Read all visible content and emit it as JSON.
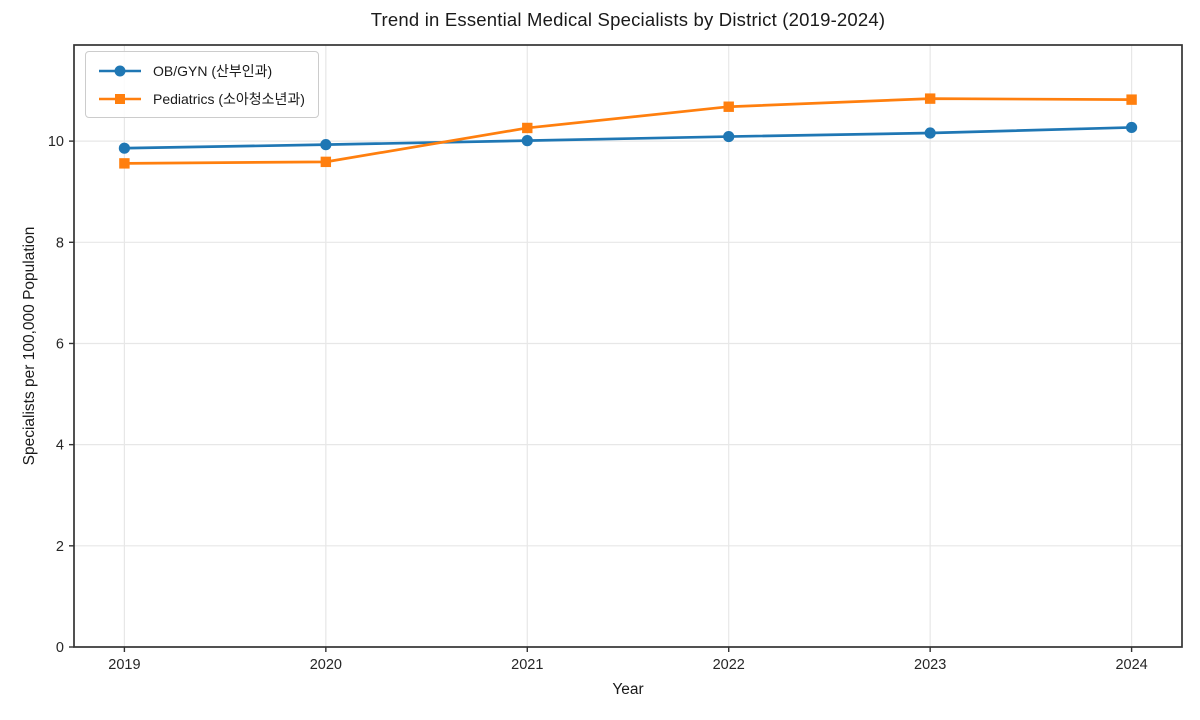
{
  "chart_data": {
    "type": "line",
    "title": "Trend in Essential Medical Specialists by District (2019-2024)",
    "xlabel": "Year",
    "ylabel": "Specialists per 100,000 Population",
    "x": [
      2019,
      2020,
      2021,
      2022,
      2023,
      2024
    ],
    "y_ticks": [
      0,
      2,
      4,
      6,
      8,
      10
    ],
    "ylim": [
      0,
      11.9
    ],
    "grid": true,
    "legend_position": "upper left",
    "series": [
      {
        "name": "OB/GYN (산부인과)",
        "marker": "circle",
        "color": "#1f77b4",
        "values": [
          9.86,
          9.93,
          10.01,
          10.09,
          10.16,
          10.27
        ]
      },
      {
        "name": "Pediatrics (소아청소년과)",
        "marker": "square",
        "color": "#ff7f0e",
        "values": [
          9.56,
          9.59,
          10.26,
          10.68,
          10.84,
          10.82
        ]
      }
    ],
    "colors": {
      "grid": "#e7e7e7",
      "spine": "#333333",
      "tick_text": "#262626",
      "background": "#ffffff"
    }
  }
}
